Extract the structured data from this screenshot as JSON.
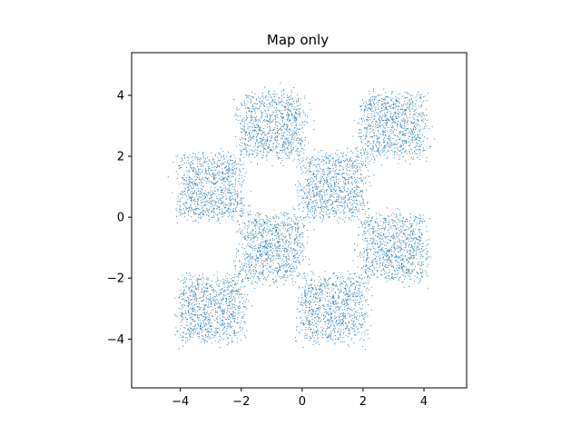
{
  "chart_data": {
    "type": "scatter",
    "title": "Map only",
    "xlabel": "",
    "ylabel": "",
    "xlim": [
      -5.6,
      5.4
    ],
    "ylim": [
      -5.6,
      5.4
    ],
    "xticks": [
      -4,
      -2,
      0,
      2,
      4
    ],
    "yticks": [
      -4,
      -2,
      0,
      2,
      4
    ],
    "xtick_labels": [
      "−4",
      "−2",
      "0",
      "2",
      "4"
    ],
    "ytick_labels": [
      "−4",
      "−2",
      "0",
      "2",
      "4"
    ],
    "grid": false,
    "marker_color": "#1f77b4",
    "clusters": [
      {
        "x_range": [
          -4,
          -2
        ],
        "y_range": [
          0,
          2
        ]
      },
      {
        "x_range": [
          -2,
          0
        ],
        "y_range": [
          2,
          4
        ]
      },
      {
        "x_range": [
          0,
          2
        ],
        "y_range": [
          0,
          2
        ]
      },
      {
        "x_range": [
          2,
          4
        ],
        "y_range": [
          2,
          4
        ]
      },
      {
        "x_range": [
          -2,
          0
        ],
        "y_range": [
          -2,
          0
        ]
      },
      {
        "x_range": [
          2,
          4
        ],
        "y_range": [
          -2,
          0
        ]
      },
      {
        "x_range": [
          -4,
          -2
        ],
        "y_range": [
          -4,
          -2
        ]
      },
      {
        "x_range": [
          0,
          2
        ],
        "y_range": [
          -4,
          -2
        ]
      }
    ]
  }
}
